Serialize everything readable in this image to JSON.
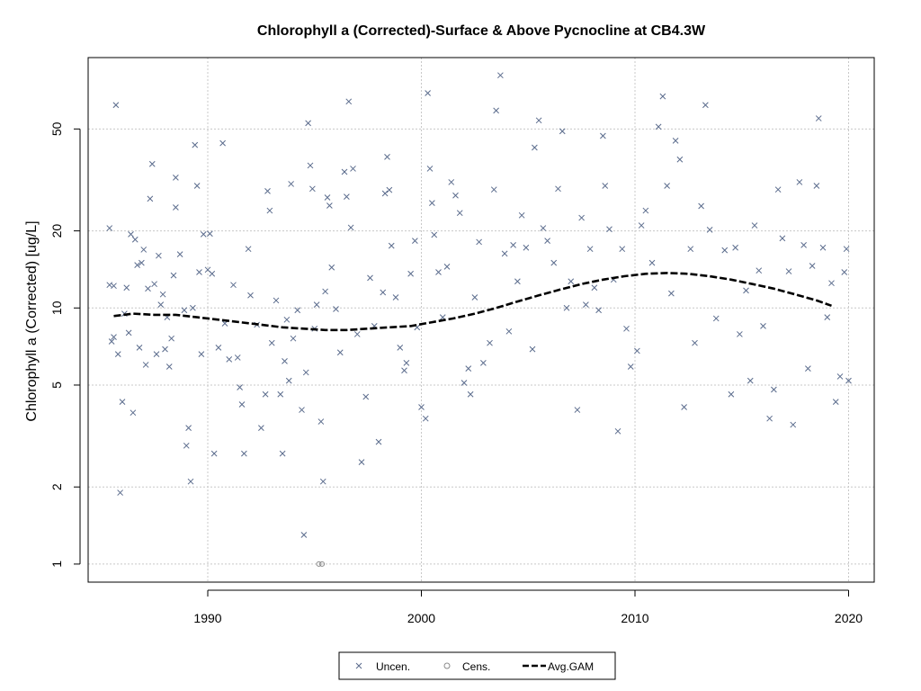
{
  "chart_data": {
    "type": "scatter",
    "title": "Chlorophyll a (Corrected)-Surface & Above Pycnocline at CB4.3W",
    "xlabel": "",
    "ylabel": "Chlorophyll a (Corrected) [ug/L]",
    "x_scale": "linear",
    "y_scale": "log",
    "xlim": [
      1984.4,
      2021.2
    ],
    "ylim": [
      0.85,
      95
    ],
    "x_ticks": [
      1990,
      2000,
      2010,
      2020
    ],
    "y_ticks": [
      1,
      2,
      5,
      10,
      20,
      50
    ],
    "grid": true,
    "legend_position": "bottom-center",
    "legend": [
      "Uncen.",
      "Cens.",
      "Avg.GAM"
    ],
    "colors": {
      "uncensored": "#5a6b8c",
      "censored": "#8a8a8a",
      "gam": "#000000",
      "grid": "#c8c8c8"
    },
    "series": [
      {
        "name": "Uncen.",
        "marker": "x",
        "points": [
          [
            1985.4,
            12.3
          ],
          [
            1985.4,
            20.5
          ],
          [
            1985.5,
            7.4
          ],
          [
            1985.6,
            7.7
          ],
          [
            1985.6,
            12.2
          ],
          [
            1985.7,
            62.0
          ],
          [
            1985.8,
            6.6
          ],
          [
            1985.9,
            1.9
          ],
          [
            1986.0,
            4.3
          ],
          [
            1986.1,
            9.5
          ],
          [
            1986.2,
            12.0
          ],
          [
            1986.3,
            8.0
          ],
          [
            1986.4,
            19.4
          ],
          [
            1986.5,
            3.9
          ],
          [
            1986.6,
            18.5
          ],
          [
            1986.7,
            14.7
          ],
          [
            1986.8,
            7.0
          ],
          [
            1986.9,
            15.0
          ],
          [
            1987.0,
            16.9
          ],
          [
            1987.1,
            6.0
          ],
          [
            1987.2,
            11.9
          ],
          [
            1987.3,
            26.7
          ],
          [
            1987.4,
            36.5
          ],
          [
            1987.5,
            12.4
          ],
          [
            1987.6,
            6.6
          ],
          [
            1987.7,
            16.0
          ],
          [
            1987.8,
            10.3
          ],
          [
            1987.9,
            11.3
          ],
          [
            1988.0,
            6.9
          ],
          [
            1988.1,
            9.2
          ],
          [
            1988.2,
            5.9
          ],
          [
            1988.3,
            7.6
          ],
          [
            1988.4,
            13.4
          ],
          [
            1988.5,
            32.3
          ],
          [
            1988.5,
            24.7
          ],
          [
            1988.7,
            16.2
          ],
          [
            1988.9,
            9.8
          ],
          [
            1989.0,
            2.9
          ],
          [
            1989.1,
            3.4
          ],
          [
            1989.2,
            2.1
          ],
          [
            1989.3,
            10.0
          ],
          [
            1989.4,
            43.3
          ],
          [
            1989.5,
            30.0
          ],
          [
            1989.6,
            13.8
          ],
          [
            1989.7,
            6.6
          ],
          [
            1989.8,
            19.4
          ],
          [
            1990.0,
            14.1
          ],
          [
            1990.1,
            19.5
          ],
          [
            1990.2,
            13.6
          ],
          [
            1990.3,
            2.7
          ],
          [
            1990.5,
            7.0
          ],
          [
            1990.7,
            44.0
          ],
          [
            1990.8,
            8.7
          ],
          [
            1991.0,
            6.3
          ],
          [
            1991.2,
            12.3
          ],
          [
            1991.4,
            6.4
          ],
          [
            1991.5,
            4.9
          ],
          [
            1991.6,
            4.2
          ],
          [
            1991.7,
            2.7
          ],
          [
            1991.9,
            17.0
          ],
          [
            1992.0,
            11.2
          ],
          [
            1992.3,
            8.6
          ],
          [
            1992.5,
            3.4
          ],
          [
            1992.7,
            4.6
          ],
          [
            1992.8,
            28.6
          ],
          [
            1992.9,
            24.0
          ],
          [
            1993.0,
            7.3
          ],
          [
            1993.2,
            10.7
          ],
          [
            1993.4,
            4.6
          ],
          [
            1993.5,
            2.7
          ],
          [
            1993.6,
            6.2
          ],
          [
            1993.7,
            9.0
          ],
          [
            1993.8,
            5.2
          ],
          [
            1993.9,
            30.5
          ],
          [
            1994.0,
            7.6
          ],
          [
            1994.2,
            9.8
          ],
          [
            1994.4,
            4.0
          ],
          [
            1994.5,
            1.3
          ],
          [
            1994.6,
            5.6
          ],
          [
            1994.7,
            52.7
          ],
          [
            1994.8,
            36.0
          ],
          [
            1994.9,
            29.2
          ],
          [
            1995.0,
            8.3
          ],
          [
            1995.1,
            10.3
          ],
          [
            1995.3,
            3.6
          ],
          [
            1995.4,
            2.1
          ],
          [
            1995.5,
            11.6
          ],
          [
            1995.6,
            27.0
          ],
          [
            1995.7,
            25.1
          ],
          [
            1995.8,
            14.4
          ],
          [
            1996.0,
            9.9
          ],
          [
            1996.2,
            6.7
          ],
          [
            1996.4,
            34.0
          ],
          [
            1996.5,
            27.2
          ],
          [
            1996.6,
            64.0
          ],
          [
            1996.7,
            20.6
          ],
          [
            1996.8,
            35.0
          ],
          [
            1997.0,
            7.9
          ],
          [
            1997.2,
            2.5
          ],
          [
            1997.4,
            4.5
          ],
          [
            1997.6,
            13.1
          ],
          [
            1997.8,
            8.5
          ],
          [
            1998.0,
            3.0
          ],
          [
            1998.2,
            11.5
          ],
          [
            1998.3,
            28.0
          ],
          [
            1998.4,
            38.9
          ],
          [
            1998.5,
            28.9
          ],
          [
            1998.6,
            17.5
          ],
          [
            1998.8,
            11.0
          ],
          [
            1999.0,
            7.0
          ],
          [
            1999.2,
            5.7
          ],
          [
            1999.3,
            6.1
          ],
          [
            1999.5,
            13.6
          ],
          [
            1999.7,
            18.3
          ],
          [
            1999.8,
            8.4
          ],
          [
            2000.0,
            4.1
          ],
          [
            2000.2,
            3.7
          ],
          [
            2000.3,
            69.0
          ],
          [
            2000.4,
            35.0
          ],
          [
            2000.5,
            25.7
          ],
          [
            2000.6,
            19.3
          ],
          [
            2000.8,
            13.8
          ],
          [
            2001.0,
            9.2
          ],
          [
            2001.2,
            14.5
          ],
          [
            2001.4,
            31.0
          ],
          [
            2001.6,
            27.5
          ],
          [
            2001.8,
            23.5
          ],
          [
            2002.0,
            5.1
          ],
          [
            2002.2,
            5.8
          ],
          [
            2002.3,
            4.6
          ],
          [
            2002.5,
            11.0
          ],
          [
            2002.7,
            18.1
          ],
          [
            2002.9,
            6.1
          ],
          [
            2003.2,
            7.3
          ],
          [
            2003.4,
            29.0
          ],
          [
            2003.5,
            59.0
          ],
          [
            2003.7,
            81.0
          ],
          [
            2003.9,
            16.3
          ],
          [
            2004.1,
            8.1
          ],
          [
            2004.3,
            17.6
          ],
          [
            2004.5,
            12.7
          ],
          [
            2004.7,
            23.0
          ],
          [
            2004.9,
            17.2
          ],
          [
            2005.2,
            6.9
          ],
          [
            2005.3,
            42.3
          ],
          [
            2005.5,
            54.0
          ],
          [
            2005.7,
            20.5
          ],
          [
            2005.9,
            18.3
          ],
          [
            2006.2,
            15.0
          ],
          [
            2006.4,
            29.2
          ],
          [
            2006.6,
            49.0
          ],
          [
            2006.8,
            10.0
          ],
          [
            2007.0,
            12.7
          ],
          [
            2007.3,
            4.0
          ],
          [
            2007.5,
            22.5
          ],
          [
            2007.7,
            10.3
          ],
          [
            2007.9,
            17.0
          ],
          [
            2008.1,
            12.0
          ],
          [
            2008.3,
            9.8
          ],
          [
            2008.5,
            47.0
          ],
          [
            2008.6,
            30.0
          ],
          [
            2008.8,
            20.3
          ],
          [
            2009.0,
            12.9
          ],
          [
            2009.2,
            3.3
          ],
          [
            2009.4,
            17.0
          ],
          [
            2009.6,
            8.3
          ],
          [
            2009.8,
            5.9
          ],
          [
            2010.1,
            6.8
          ],
          [
            2010.3,
            21.0
          ],
          [
            2010.5,
            24.0
          ],
          [
            2010.8,
            15.0
          ],
          [
            2011.1,
            51.0
          ],
          [
            2011.3,
            67.0
          ],
          [
            2011.5,
            30.0
          ],
          [
            2011.7,
            11.4
          ],
          [
            2011.9,
            45.0
          ],
          [
            2012.1,
            38.0
          ],
          [
            2012.3,
            4.1
          ],
          [
            2012.6,
            17.0
          ],
          [
            2012.8,
            7.3
          ],
          [
            2013.1,
            25.0
          ],
          [
            2013.3,
            62.0
          ],
          [
            2013.5,
            20.2
          ],
          [
            2013.8,
            9.1
          ],
          [
            2014.2,
            16.8
          ],
          [
            2014.5,
            4.6
          ],
          [
            2014.7,
            17.2
          ],
          [
            2014.9,
            7.9
          ],
          [
            2015.2,
            11.7
          ],
          [
            2015.4,
            5.2
          ],
          [
            2015.6,
            21.0
          ],
          [
            2015.8,
            14.0
          ],
          [
            2016.0,
            8.5
          ],
          [
            2016.3,
            3.7
          ],
          [
            2016.5,
            4.8
          ],
          [
            2016.7,
            29.0
          ],
          [
            2016.9,
            18.7
          ],
          [
            2017.2,
            13.9
          ],
          [
            2017.4,
            3.5
          ],
          [
            2017.7,
            31.0
          ],
          [
            2017.9,
            17.6
          ],
          [
            2018.1,
            5.8
          ],
          [
            2018.3,
            14.6
          ],
          [
            2018.5,
            30.0
          ],
          [
            2018.6,
            55.0
          ],
          [
            2018.8,
            17.2
          ],
          [
            2019.0,
            9.2
          ],
          [
            2019.2,
            12.5
          ],
          [
            2019.4,
            4.3
          ],
          [
            2019.6,
            5.4
          ],
          [
            2019.8,
            13.8
          ],
          [
            2019.9,
            17.0
          ],
          [
            2020.0,
            5.2
          ]
        ]
      },
      {
        "name": "Cens.",
        "marker": "o",
        "points": [
          [
            1995.2,
            1.0
          ],
          [
            1995.35,
            1.0
          ]
        ]
      },
      {
        "name": "Avg.GAM",
        "marker": "dashed-line",
        "points": [
          [
            1985.6,
            9.3
          ],
          [
            1986.5,
            9.5
          ],
          [
            1987.5,
            9.4
          ],
          [
            1988.5,
            9.4
          ],
          [
            1989.5,
            9.2
          ],
          [
            1990.5,
            9.0
          ],
          [
            1991.5,
            8.8
          ],
          [
            1992.5,
            8.6
          ],
          [
            1993.5,
            8.4
          ],
          [
            1994.5,
            8.3
          ],
          [
            1995.5,
            8.2
          ],
          [
            1996.5,
            8.2
          ],
          [
            1997.5,
            8.3
          ],
          [
            1998.5,
            8.4
          ],
          [
            1999.5,
            8.5
          ],
          [
            2000.5,
            8.8
          ],
          [
            2001.5,
            9.1
          ],
          [
            2002.5,
            9.5
          ],
          [
            2003.5,
            10.0
          ],
          [
            2004.5,
            10.6
          ],
          [
            2005.5,
            11.2
          ],
          [
            2006.5,
            11.8
          ],
          [
            2007.5,
            12.4
          ],
          [
            2008.5,
            12.9
          ],
          [
            2009.5,
            13.3
          ],
          [
            2010.5,
            13.6
          ],
          [
            2011.5,
            13.7
          ],
          [
            2012.5,
            13.6
          ],
          [
            2013.5,
            13.3
          ],
          [
            2014.5,
            12.9
          ],
          [
            2015.5,
            12.4
          ],
          [
            2016.5,
            11.9
          ],
          [
            2017.5,
            11.3
          ],
          [
            2018.5,
            10.7
          ],
          [
            2019.2,
            10.2
          ]
        ]
      }
    ]
  }
}
